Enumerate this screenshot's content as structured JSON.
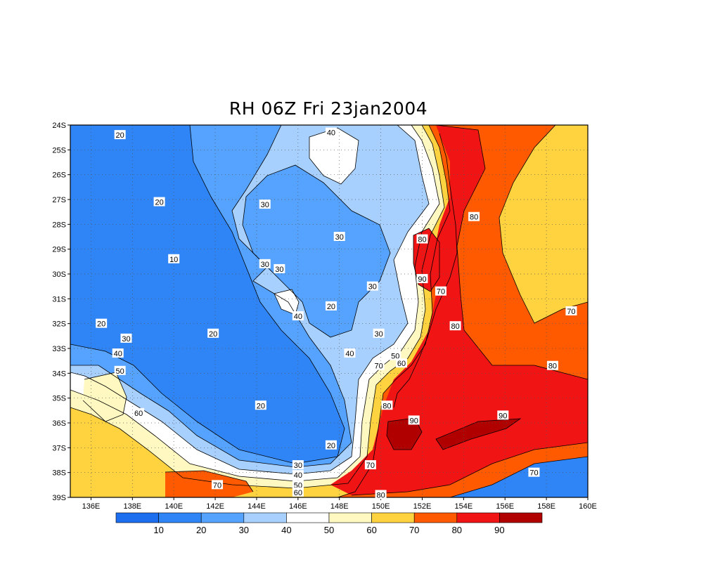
{
  "title": "RH 06Z Fri 23jan2004",
  "map": {
    "lat_labels": [
      "24S",
      "25S",
      "26S",
      "27S",
      "28S",
      "29S",
      "30S",
      "31S",
      "32S",
      "33S",
      "34S",
      "35S",
      "36S",
      "37S",
      "38S",
      "39S"
    ],
    "lon_labels": [
      "136E",
      "138E",
      "140E",
      "142E",
      "144E",
      "146E",
      "148E",
      "150E",
      "152E",
      "154E",
      "156E",
      "158E",
      "160E"
    ],
    "grid": true
  },
  "contour_labels": [
    {
      "text": "20",
      "lon": 137.4,
      "lat": -24.4
    },
    {
      "text": "40",
      "lon": 147.6,
      "lat": -24.3
    },
    {
      "text": "20",
      "lon": 139.3,
      "lat": -27.1
    },
    {
      "text": "30",
      "lon": 144.4,
      "lat": -27.2
    },
    {
      "text": "80",
      "lon": 154.5,
      "lat": -27.7
    },
    {
      "text": "30",
      "lon": 148.0,
      "lat": -28.5
    },
    {
      "text": "80",
      "lon": 152.0,
      "lat": -28.6
    },
    {
      "text": "10",
      "lon": 140.0,
      "lat": -29.4
    },
    {
      "text": "30",
      "lon": 144.4,
      "lat": -29.6
    },
    {
      "text": "30",
      "lon": 145.1,
      "lat": -29.8
    },
    {
      "text": "90",
      "lon": 152.0,
      "lat": -30.2
    },
    {
      "text": "30",
      "lon": 149.6,
      "lat": -30.5
    },
    {
      "text": "70",
      "lon": 152.9,
      "lat": -30.7
    },
    {
      "text": "20",
      "lon": 147.6,
      "lat": -31.3
    },
    {
      "text": "40",
      "lon": 146.0,
      "lat": -31.7
    },
    {
      "text": "70",
      "lon": 159.2,
      "lat": -31.5
    },
    {
      "text": "20",
      "lon": 136.5,
      "lat": -32.0
    },
    {
      "text": "80",
      "lon": 153.6,
      "lat": -32.1
    },
    {
      "text": "30",
      "lon": 149.9,
      "lat": -32.4
    },
    {
      "text": "20",
      "lon": 141.9,
      "lat": -32.4
    },
    {
      "text": "30",
      "lon": 137.7,
      "lat": -32.6
    },
    {
      "text": "40",
      "lon": 137.3,
      "lat": -33.2
    },
    {
      "text": "40",
      "lon": 148.5,
      "lat": -33.2
    },
    {
      "text": "50",
      "lon": 150.7,
      "lat": -33.3
    },
    {
      "text": "60",
      "lon": 151.0,
      "lat": -33.6
    },
    {
      "text": "70",
      "lon": 149.9,
      "lat": -33.7
    },
    {
      "text": "80",
      "lon": 158.3,
      "lat": -33.7
    },
    {
      "text": "50",
      "lon": 137.4,
      "lat": -33.9
    },
    {
      "text": "20",
      "lon": 144.2,
      "lat": -35.3
    },
    {
      "text": "80",
      "lon": 150.3,
      "lat": -35.3
    },
    {
      "text": "60",
      "lon": 138.3,
      "lat": -35.6
    },
    {
      "text": "90",
      "lon": 155.9,
      "lat": -35.7
    },
    {
      "text": "90",
      "lon": 151.6,
      "lat": -35.9
    },
    {
      "text": "20",
      "lon": 147.6,
      "lat": -36.9
    },
    {
      "text": "30",
      "lon": 146.0,
      "lat": -37.7
    },
    {
      "text": "70",
      "lon": 149.5,
      "lat": -37.7
    },
    {
      "text": "40",
      "lon": 146.0,
      "lat": -38.1
    },
    {
      "text": "70",
      "lon": 142.1,
      "lat": -38.5
    },
    {
      "text": "70",
      "lon": 157.4,
      "lat": -38.0
    },
    {
      "text": "50",
      "lon": 146.0,
      "lat": -38.5
    },
    {
      "text": "60",
      "lon": 146.0,
      "lat": -38.8
    },
    {
      "text": "80",
      "lon": 150.0,
      "lat": -38.9
    }
  ],
  "colorbar": {
    "labels": [
      "10",
      "20",
      "30",
      "40",
      "50",
      "60",
      "70",
      "80",
      "90"
    ],
    "colors": [
      "#1e6ef0",
      "#2f85f5",
      "#55a3ff",
      "#a8d0ff",
      "#ffffff",
      "#fff8c0",
      "#ffd23f",
      "#ff5a00",
      "#f01414",
      "#b00000"
    ]
  }
}
